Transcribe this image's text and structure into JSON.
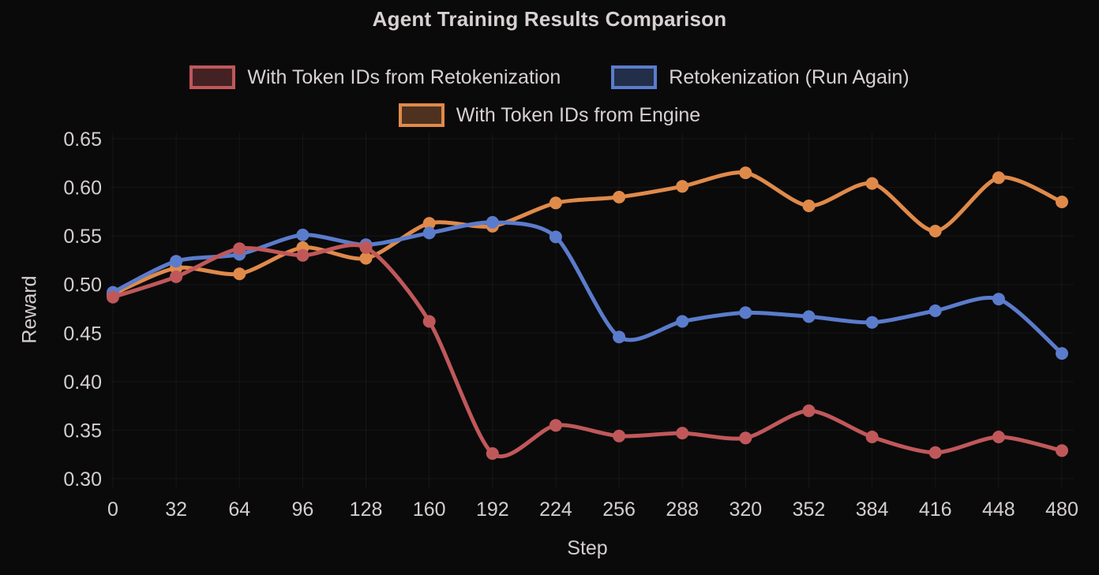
{
  "chart_data": {
    "type": "line",
    "title": "Agent Training Results Comparison",
    "xlabel": "Step",
    "ylabel": "Reward",
    "x": [
      0,
      32,
      64,
      96,
      128,
      160,
      192,
      224,
      256,
      288,
      320,
      352,
      384,
      416,
      448,
      480
    ],
    "ylim": [
      0.3,
      0.65
    ],
    "ytick_step": 0.05,
    "grid": true,
    "legend_position": "top",
    "background_color": "#0a0a0b",
    "text_color": "#d4cece",
    "grid_color": "rgba(255,255,255,0.05)",
    "series": [
      {
        "name": "With Token IDs from Retokenization",
        "color": "#c0585a",
        "values": [
          0.487,
          0.508,
          0.537,
          0.53,
          0.538,
          0.462,
          0.326,
          0.355,
          0.344,
          0.347,
          0.342,
          0.37,
          0.343,
          0.327,
          0.343,
          0.329
        ]
      },
      {
        "name": "Retokenization (Run Again)",
        "color": "#5b7ccc",
        "values": [
          0.492,
          0.524,
          0.531,
          0.551,
          0.541,
          0.553,
          0.564,
          0.549,
          0.446,
          0.462,
          0.471,
          0.467,
          0.461,
          0.473,
          0.485,
          0.429
        ]
      },
      {
        "name": "With Token IDs from Engine",
        "color": "#e08a4a",
        "values": [
          0.49,
          0.517,
          0.511,
          0.538,
          0.527,
          0.563,
          0.56,
          0.584,
          0.59,
          0.601,
          0.615,
          0.581,
          0.604,
          0.555,
          0.61,
          0.585
        ]
      }
    ]
  }
}
